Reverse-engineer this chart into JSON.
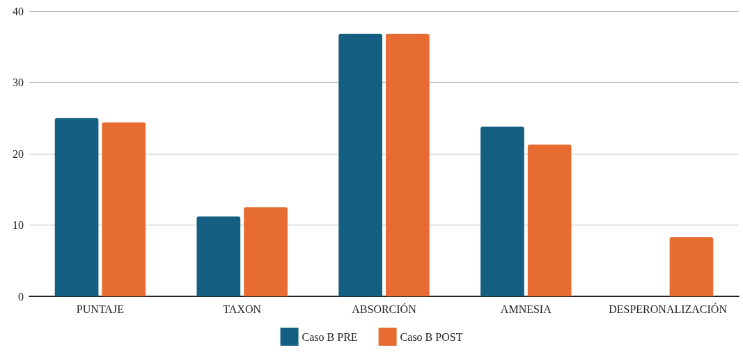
{
  "chart_data": {
    "type": "bar",
    "categories": [
      "PUNTAJE",
      "TAXON",
      "ABSORCIÓN",
      "AMNESIA",
      "DESPERONALIZACIÓN"
    ],
    "series": [
      {
        "name": "Caso B PRE",
        "color": "#156082",
        "values": [
          25,
          11.2,
          36.8,
          23.8,
          0
        ]
      },
      {
        "name": "Caso B POST",
        "color": "#e66c32",
        "values": [
          24.4,
          12.5,
          36.8,
          21.3,
          8.3
        ]
      }
    ],
    "ylim": [
      0,
      40
    ],
    "yticks": [
      0,
      10,
      20,
      30,
      40
    ],
    "grid": "y",
    "legend": "bottom"
  }
}
